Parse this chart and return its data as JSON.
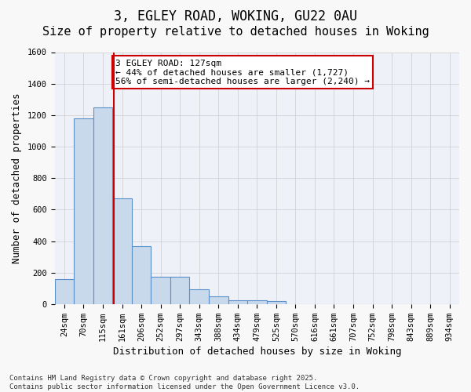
{
  "title_line1": "3, EGLEY ROAD, WOKING, GU22 0AU",
  "title_line2": "Size of property relative to detached houses in Woking",
  "xlabel": "Distribution of detached houses by size in Woking",
  "ylabel": "Number of detached properties",
  "bins": [
    "24sqm",
    "70sqm",
    "115sqm",
    "161sqm",
    "206sqm",
    "252sqm",
    "297sqm",
    "343sqm",
    "388sqm",
    "434sqm",
    "479sqm",
    "525sqm",
    "570sqm",
    "616sqm",
    "661sqm",
    "707sqm",
    "752sqm",
    "798sqm",
    "843sqm",
    "889sqm",
    "934sqm"
  ],
  "bar_heights": [
    160,
    1180,
    1250,
    670,
    370,
    175,
    175,
    95,
    50,
    25,
    25,
    20,
    0,
    0,
    0,
    0,
    0,
    0,
    0,
    0,
    0
  ],
  "bar_color": "#c9d9ec",
  "bar_edge_color": "#5b8fc9",
  "grid_color": "#cccccc",
  "background_color": "#eef2f8",
  "vline_x_index": 2.55,
  "vline_color": "#cc0000",
  "annotation_text": "3 EGLEY ROAD: 127sqm\n← 44% of detached houses are smaller (1,727)\n56% of semi-detached houses are larger (2,240) →",
  "annotation_box_color": "#ffffff",
  "annotation_box_edge": "#cc0000",
  "ylim": [
    0,
    1600
  ],
  "yticks": [
    0,
    200,
    400,
    600,
    800,
    1000,
    1200,
    1400,
    1600
  ],
  "footnote": "Contains HM Land Registry data © Crown copyright and database right 2025.\nContains public sector information licensed under the Open Government Licence v3.0.",
  "title_fontsize": 12,
  "subtitle_fontsize": 11,
  "axis_label_fontsize": 9,
  "tick_fontsize": 7.5,
  "annotation_fontsize": 8
}
